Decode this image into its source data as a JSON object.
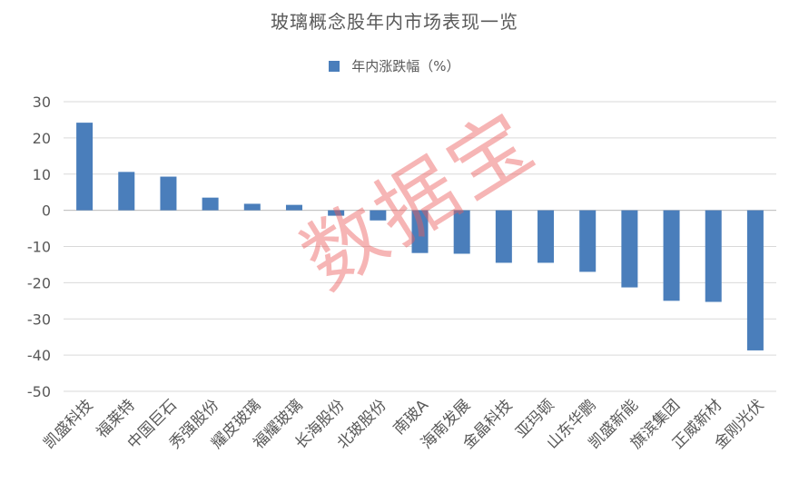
{
  "title": "玻璃概念股年内市场表现一览",
  "legend_label": "年内涨跌幅（%）",
  "watermark": "数据宝",
  "colors": {
    "bar": "#4a7ebb",
    "grid": "#d9d9d9",
    "text": "#595959",
    "watermark": "#eb5a5a"
  },
  "chart_data": {
    "type": "bar",
    "title": "玻璃概念股年内市场表现一览",
    "xlabel": "",
    "ylabel": "",
    "ylim": [
      -50,
      30
    ],
    "yticks": [
      30,
      20,
      10,
      0,
      -10,
      -20,
      -30,
      -40,
      -50
    ],
    "grid": true,
    "legend_position": "top",
    "categories": [
      "凯盛科技",
      "福莱特",
      "中国巨石",
      "秀强股份",
      "耀皮玻璃",
      "福耀玻璃",
      "长海股份",
      "北玻股份",
      "南玻A",
      "海南发展",
      "金晶科技",
      "亚玛顿",
      "山东华鹏",
      "凯盛新能",
      "旗滨集团",
      "正威新材",
      "金刚光伏"
    ],
    "series": [
      {
        "name": "年内涨跌幅（%）",
        "values": [
          24.2,
          10.6,
          9.3,
          3.5,
          1.8,
          1.5,
          -1.5,
          -2.8,
          -11.8,
          -12.0,
          -14.5,
          -14.5,
          -17.0,
          -21.3,
          -25.0,
          -25.3,
          -38.7
        ]
      }
    ]
  }
}
